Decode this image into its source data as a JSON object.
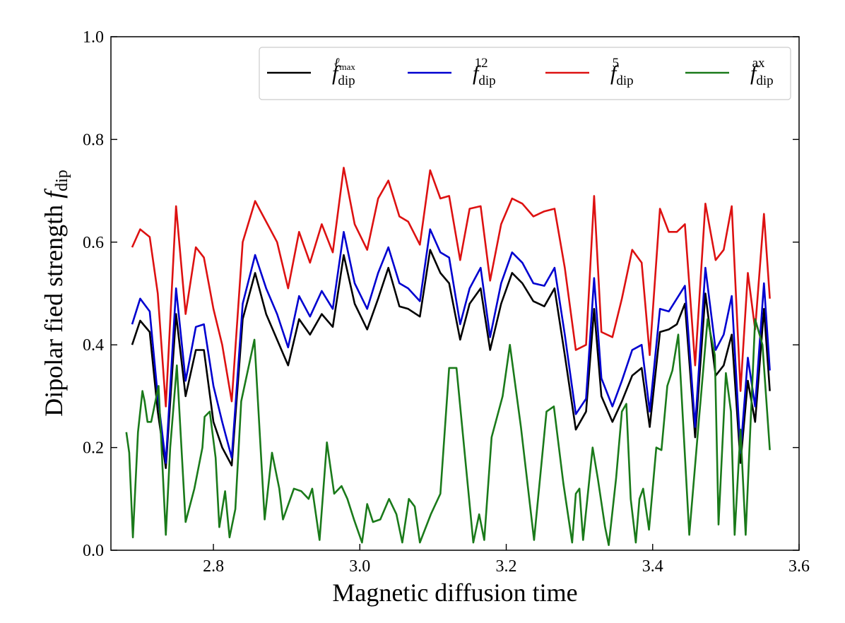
{
  "chart_data": {
    "type": "line",
    "title": "",
    "xlabel": "Magnetic diffusion time",
    "ylabel": "Dipolar fied strength",
    "ylabel_symbol": "f",
    "ylabel_sub": "dip",
    "xlim": [
      2.66,
      3.6
    ],
    "ylim": [
      0.0,
      1.0
    ],
    "xticks": [
      2.8,
      3.0,
      3.2,
      3.4,
      3.6
    ],
    "xtick_labels": [
      "2.8",
      "3.0",
      "3.2",
      "3.4",
      "3.6"
    ],
    "yticks": [
      0.0,
      0.2,
      0.4,
      0.6,
      0.8,
      1.0
    ],
    "ytick_labels": [
      "0.0",
      "0.2",
      "0.4",
      "0.6",
      "0.8",
      "1.0"
    ],
    "legend_position": "top-right",
    "series": [
      {
        "name": "f_dip^lmax",
        "label_main": "f",
        "label_sub": "dip",
        "label_sup": "ℓ",
        "label_sup_sub": "max",
        "color": "#000000",
        "points": [
          [
            2.689,
            0.4
          ],
          [
            2.7,
            0.447
          ],
          [
            2.713,
            0.425
          ],
          [
            2.724,
            0.27
          ],
          [
            2.735,
            0.16
          ],
          [
            2.749,
            0.46
          ],
          [
            2.762,
            0.3
          ],
          [
            2.776,
            0.39
          ],
          [
            2.787,
            0.39
          ],
          [
            2.8,
            0.25
          ],
          [
            2.812,
            0.2
          ],
          [
            2.825,
            0.165
          ],
          [
            2.84,
            0.45
          ],
          [
            2.857,
            0.54
          ],
          [
            2.872,
            0.46
          ],
          [
            2.887,
            0.41
          ],
          [
            2.902,
            0.36
          ],
          [
            2.917,
            0.45
          ],
          [
            2.932,
            0.42
          ],
          [
            2.948,
            0.46
          ],
          [
            2.963,
            0.435
          ],
          [
            2.978,
            0.575
          ],
          [
            2.993,
            0.48
          ],
          [
            3.01,
            0.43
          ],
          [
            3.025,
            0.49
          ],
          [
            3.039,
            0.55
          ],
          [
            3.054,
            0.475
          ],
          [
            3.066,
            0.47
          ],
          [
            3.082,
            0.455
          ],
          [
            3.096,
            0.585
          ],
          [
            3.11,
            0.54
          ],
          [
            3.122,
            0.52
          ],
          [
            3.137,
            0.41
          ],
          [
            3.15,
            0.48
          ],
          [
            3.165,
            0.51
          ],
          [
            3.178,
            0.39
          ],
          [
            3.193,
            0.48
          ],
          [
            3.208,
            0.54
          ],
          [
            3.222,
            0.52
          ],
          [
            3.237,
            0.485
          ],
          [
            3.252,
            0.475
          ],
          [
            3.266,
            0.51
          ],
          [
            3.28,
            0.38
          ],
          [
            3.295,
            0.235
          ],
          [
            3.309,
            0.27
          ],
          [
            3.32,
            0.47
          ],
          [
            3.33,
            0.3
          ],
          [
            3.345,
            0.25
          ],
          [
            3.358,
            0.29
          ],
          [
            3.372,
            0.34
          ],
          [
            3.385,
            0.355
          ],
          [
            3.396,
            0.24
          ],
          [
            3.41,
            0.425
          ],
          [
            3.422,
            0.43
          ],
          [
            3.433,
            0.44
          ],
          [
            3.444,
            0.48
          ],
          [
            3.458,
            0.22
          ],
          [
            3.472,
            0.5
          ],
          [
            3.486,
            0.34
          ],
          [
            3.497,
            0.36
          ],
          [
            3.508,
            0.42
          ],
          [
            3.52,
            0.17
          ],
          [
            3.53,
            0.33
          ],
          [
            3.54,
            0.25
          ],
          [
            3.552,
            0.47
          ],
          [
            3.56,
            0.31
          ]
        ]
      },
      {
        "name": "f_dip^12",
        "label_main": "f",
        "label_sub": "dip",
        "label_sup": "12",
        "label_sup_sub": "",
        "color": "#0000d0",
        "points": [
          [
            2.689,
            0.44
          ],
          [
            2.7,
            0.49
          ],
          [
            2.713,
            0.465
          ],
          [
            2.724,
            0.3
          ],
          [
            2.735,
            0.17
          ],
          [
            2.749,
            0.51
          ],
          [
            2.762,
            0.33
          ],
          [
            2.776,
            0.435
          ],
          [
            2.787,
            0.44
          ],
          [
            2.8,
            0.32
          ],
          [
            2.812,
            0.25
          ],
          [
            2.825,
            0.18
          ],
          [
            2.84,
            0.48
          ],
          [
            2.857,
            0.575
          ],
          [
            2.872,
            0.51
          ],
          [
            2.887,
            0.46
          ],
          [
            2.902,
            0.395
          ],
          [
            2.917,
            0.495
          ],
          [
            2.932,
            0.455
          ],
          [
            2.948,
            0.505
          ],
          [
            2.963,
            0.47
          ],
          [
            2.978,
            0.62
          ],
          [
            2.993,
            0.52
          ],
          [
            3.01,
            0.47
          ],
          [
            3.025,
            0.54
          ],
          [
            3.039,
            0.59
          ],
          [
            3.054,
            0.52
          ],
          [
            3.066,
            0.51
          ],
          [
            3.082,
            0.485
          ],
          [
            3.096,
            0.625
          ],
          [
            3.11,
            0.58
          ],
          [
            3.122,
            0.57
          ],
          [
            3.137,
            0.44
          ],
          [
            3.15,
            0.51
          ],
          [
            3.165,
            0.55
          ],
          [
            3.178,
            0.415
          ],
          [
            3.193,
            0.52
          ],
          [
            3.208,
            0.58
          ],
          [
            3.222,
            0.56
          ],
          [
            3.237,
            0.52
          ],
          [
            3.252,
            0.515
          ],
          [
            3.266,
            0.55
          ],
          [
            3.28,
            0.42
          ],
          [
            3.295,
            0.265
          ],
          [
            3.309,
            0.295
          ],
          [
            3.32,
            0.53
          ],
          [
            3.33,
            0.335
          ],
          [
            3.345,
            0.28
          ],
          [
            3.358,
            0.33
          ],
          [
            3.372,
            0.39
          ],
          [
            3.385,
            0.4
          ],
          [
            3.396,
            0.27
          ],
          [
            3.41,
            0.47
          ],
          [
            3.422,
            0.465
          ],
          [
            3.433,
            0.49
          ],
          [
            3.444,
            0.515
          ],
          [
            3.458,
            0.24
          ],
          [
            3.472,
            0.55
          ],
          [
            3.486,
            0.39
          ],
          [
            3.497,
            0.42
          ],
          [
            3.508,
            0.495
          ],
          [
            3.52,
            0.19
          ],
          [
            3.53,
            0.375
          ],
          [
            3.54,
            0.28
          ],
          [
            3.552,
            0.52
          ],
          [
            3.56,
            0.35
          ]
        ]
      },
      {
        "name": "f_dip^5",
        "label_main": "f",
        "label_sub": "dip",
        "label_sup": "5",
        "label_sup_sub": "",
        "color": "#dd1111",
        "points": [
          [
            2.689,
            0.59
          ],
          [
            2.7,
            0.625
          ],
          [
            2.713,
            0.61
          ],
          [
            2.724,
            0.5
          ],
          [
            2.735,
            0.28
          ],
          [
            2.749,
            0.67
          ],
          [
            2.762,
            0.46
          ],
          [
            2.776,
            0.59
          ],
          [
            2.787,
            0.57
          ],
          [
            2.8,
            0.47
          ],
          [
            2.812,
            0.4
          ],
          [
            2.825,
            0.29
          ],
          [
            2.84,
            0.6
          ],
          [
            2.857,
            0.68
          ],
          [
            2.872,
            0.64
          ],
          [
            2.887,
            0.6
          ],
          [
            2.902,
            0.51
          ],
          [
            2.917,
            0.62
          ],
          [
            2.932,
            0.56
          ],
          [
            2.948,
            0.635
          ],
          [
            2.963,
            0.58
          ],
          [
            2.978,
            0.745
          ],
          [
            2.993,
            0.635
          ],
          [
            3.01,
            0.585
          ],
          [
            3.025,
            0.685
          ],
          [
            3.039,
            0.72
          ],
          [
            3.054,
            0.65
          ],
          [
            3.066,
            0.64
          ],
          [
            3.082,
            0.595
          ],
          [
            3.096,
            0.74
          ],
          [
            3.11,
            0.685
          ],
          [
            3.122,
            0.69
          ],
          [
            3.137,
            0.565
          ],
          [
            3.15,
            0.665
          ],
          [
            3.165,
            0.67
          ],
          [
            3.178,
            0.525
          ],
          [
            3.193,
            0.635
          ],
          [
            3.208,
            0.685
          ],
          [
            3.222,
            0.675
          ],
          [
            3.237,
            0.65
          ],
          [
            3.252,
            0.66
          ],
          [
            3.266,
            0.665
          ],
          [
            3.28,
            0.55
          ],
          [
            3.295,
            0.39
          ],
          [
            3.309,
            0.4
          ],
          [
            3.32,
            0.69
          ],
          [
            3.33,
            0.425
          ],
          [
            3.345,
            0.415
          ],
          [
            3.358,
            0.49
          ],
          [
            3.372,
            0.585
          ],
          [
            3.385,
            0.56
          ],
          [
            3.396,
            0.38
          ],
          [
            3.41,
            0.665
          ],
          [
            3.422,
            0.62
          ],
          [
            3.433,
            0.62
          ],
          [
            3.444,
            0.635
          ],
          [
            3.458,
            0.36
          ],
          [
            3.472,
            0.675
          ],
          [
            3.486,
            0.565
          ],
          [
            3.497,
            0.585
          ],
          [
            3.508,
            0.67
          ],
          [
            3.52,
            0.31
          ],
          [
            3.53,
            0.54
          ],
          [
            3.54,
            0.43
          ],
          [
            3.552,
            0.655
          ],
          [
            3.56,
            0.49
          ]
        ]
      },
      {
        "name": "f_dip^ax",
        "label_main": "f",
        "label_sub": "dip",
        "label_sup": "ax",
        "label_sup_sub": "",
        "color": "#1a7a1a",
        "points": [
          [
            2.681,
            0.23
          ],
          [
            2.685,
            0.19
          ],
          [
            2.69,
            0.025
          ],
          [
            2.697,
            0.23
          ],
          [
            2.703,
            0.31
          ],
          [
            2.706,
            0.29
          ],
          [
            2.71,
            0.25
          ],
          [
            2.715,
            0.25
          ],
          [
            2.725,
            0.32
          ],
          [
            2.735,
            0.03
          ],
          [
            2.741,
            0.2
          ],
          [
            2.75,
            0.36
          ],
          [
            2.762,
            0.055
          ],
          [
            2.774,
            0.12
          ],
          [
            2.785,
            0.2
          ],
          [
            2.788,
            0.26
          ],
          [
            2.795,
            0.27
          ],
          [
            2.803,
            0.18
          ],
          [
            2.808,
            0.045
          ],
          [
            2.816,
            0.115
          ],
          [
            2.822,
            0.025
          ],
          [
            2.83,
            0.08
          ],
          [
            2.838,
            0.29
          ],
          [
            2.856,
            0.41
          ],
          [
            2.87,
            0.06
          ],
          [
            2.88,
            0.19
          ],
          [
            2.89,
            0.12
          ],
          [
            2.895,
            0.06
          ],
          [
            2.91,
            0.12
          ],
          [
            2.92,
            0.115
          ],
          [
            2.93,
            0.1
          ],
          [
            2.935,
            0.12
          ],
          [
            2.945,
            0.02
          ],
          [
            2.955,
            0.21
          ],
          [
            2.965,
            0.11
          ],
          [
            2.975,
            0.125
          ],
          [
            2.983,
            0.1
          ],
          [
            2.992,
            0.06
          ],
          [
            3.003,
            0.015
          ],
          [
            3.01,
            0.09
          ],
          [
            3.018,
            0.055
          ],
          [
            3.028,
            0.06
          ],
          [
            3.04,
            0.1
          ],
          [
            3.05,
            0.07
          ],
          [
            3.058,
            0.015
          ],
          [
            3.067,
            0.1
          ],
          [
            3.075,
            0.085
          ],
          [
            3.082,
            0.015
          ],
          [
            3.097,
            0.07
          ],
          [
            3.11,
            0.11
          ],
          [
            3.122,
            0.355
          ],
          [
            3.132,
            0.355
          ],
          [
            3.155,
            0.015
          ],
          [
            3.163,
            0.07
          ],
          [
            3.17,
            0.02
          ],
          [
            3.18,
            0.22
          ],
          [
            3.195,
            0.3
          ],
          [
            3.205,
            0.4
          ],
          [
            3.22,
            0.24
          ],
          [
            3.238,
            0.02
          ],
          [
            3.255,
            0.27
          ],
          [
            3.265,
            0.28
          ],
          [
            3.278,
            0.13
          ],
          [
            3.29,
            0.015
          ],
          [
            3.295,
            0.11
          ],
          [
            3.3,
            0.12
          ],
          [
            3.305,
            0.02
          ],
          [
            3.318,
            0.2
          ],
          [
            3.325,
            0.14
          ],
          [
            3.335,
            0.045
          ],
          [
            3.34,
            0.01
          ],
          [
            3.35,
            0.14
          ],
          [
            3.358,
            0.27
          ],
          [
            3.364,
            0.285
          ],
          [
            3.37,
            0.1
          ],
          [
            3.377,
            0.015
          ],
          [
            3.382,
            0.1
          ],
          [
            3.387,
            0.12
          ],
          [
            3.395,
            0.04
          ],
          [
            3.405,
            0.2
          ],
          [
            3.412,
            0.195
          ],
          [
            3.42,
            0.32
          ],
          [
            3.427,
            0.35
          ],
          [
            3.435,
            0.42
          ],
          [
            3.45,
            0.03
          ],
          [
            3.463,
            0.25
          ],
          [
            3.475,
            0.45
          ],
          [
            3.485,
            0.38
          ],
          [
            3.49,
            0.05
          ],
          [
            3.5,
            0.345
          ],
          [
            3.507,
            0.27
          ],
          [
            3.512,
            0.03
          ],
          [
            3.52,
            0.235
          ],
          [
            3.527,
            0.03
          ],
          [
            3.54,
            0.45
          ],
          [
            3.55,
            0.4
          ],
          [
            3.56,
            0.195
          ]
        ]
      }
    ]
  }
}
